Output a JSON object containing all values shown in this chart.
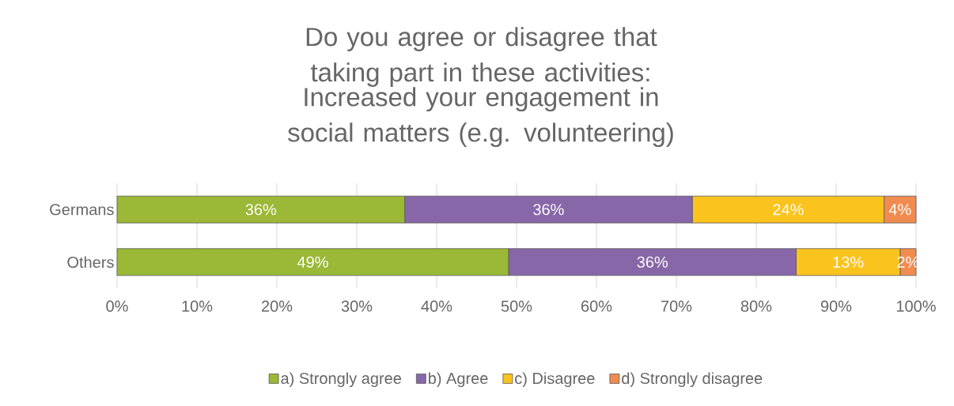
{
  "chart_data": {
    "type": "bar",
    "orientation": "horizontal",
    "stacked": true,
    "title": "Do you agree or disagree that taking part in these activities:",
    "subtitle": "Increased your engagement in social matters (e.g. volunteering)",
    "categories": [
      "Germans",
      "Others"
    ],
    "series": [
      {
        "name": "a) Strongly agree",
        "color": "#9bb836",
        "values": [
          36,
          49
        ],
        "value_labels": [
          "36%",
          "49%"
        ]
      },
      {
        "name": "b) Agree",
        "color": "#8767a8",
        "values": [
          36,
          36
        ],
        "value_labels": [
          "36%",
          "36%"
        ]
      },
      {
        "name": "c) Disagree",
        "color": "#fbc31d",
        "values": [
          24,
          13
        ],
        "value_labels": [
          "24%",
          "13%"
        ]
      },
      {
        "name": "d) Strongly disagree",
        "color": "#f18c50",
        "values": [
          4,
          2
        ],
        "value_labels": [
          "4%",
          "2%"
        ]
      }
    ],
    "xlim": [
      0,
      100
    ],
    "xticks": [
      {
        "value": 0,
        "label": "0%"
      },
      {
        "value": 10,
        "label": "10%"
      },
      {
        "value": 20,
        "label": "20%"
      },
      {
        "value": 30,
        "label": "30%"
      },
      {
        "value": 40,
        "label": "40%"
      },
      {
        "value": 50,
        "label": "50%"
      },
      {
        "value": 60,
        "label": "60%"
      },
      {
        "value": 70,
        "label": "70%"
      },
      {
        "value": 80,
        "label": "80%"
      },
      {
        "value": 90,
        "label": "90%"
      },
      {
        "value": 100,
        "label": "100%"
      }
    ],
    "grid": "x",
    "legend": "bottom"
  }
}
